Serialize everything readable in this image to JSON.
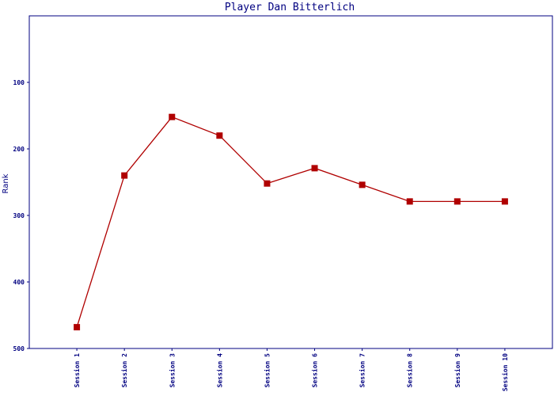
{
  "chart_data": {
    "type": "line",
    "title": "Player Dan Bitterlich",
    "y_label": "Rank",
    "categories": [
      "Session 1",
      "Session 2",
      "Session 3",
      "Session 4",
      "Session 5",
      "Session 6",
      "Session 7",
      "Session 8",
      "Session 9",
      "Session 10"
    ],
    "series": [
      {
        "name": "Rank",
        "color": "#b00000",
        "values": [
          468,
          240,
          152,
          180,
          252,
          229,
          254,
          279,
          279,
          279
        ]
      }
    ],
    "ylim": [
      500,
      0
    ],
    "yticks": [
      100,
      200,
      300,
      400,
      500
    ],
    "grid": false
  }
}
